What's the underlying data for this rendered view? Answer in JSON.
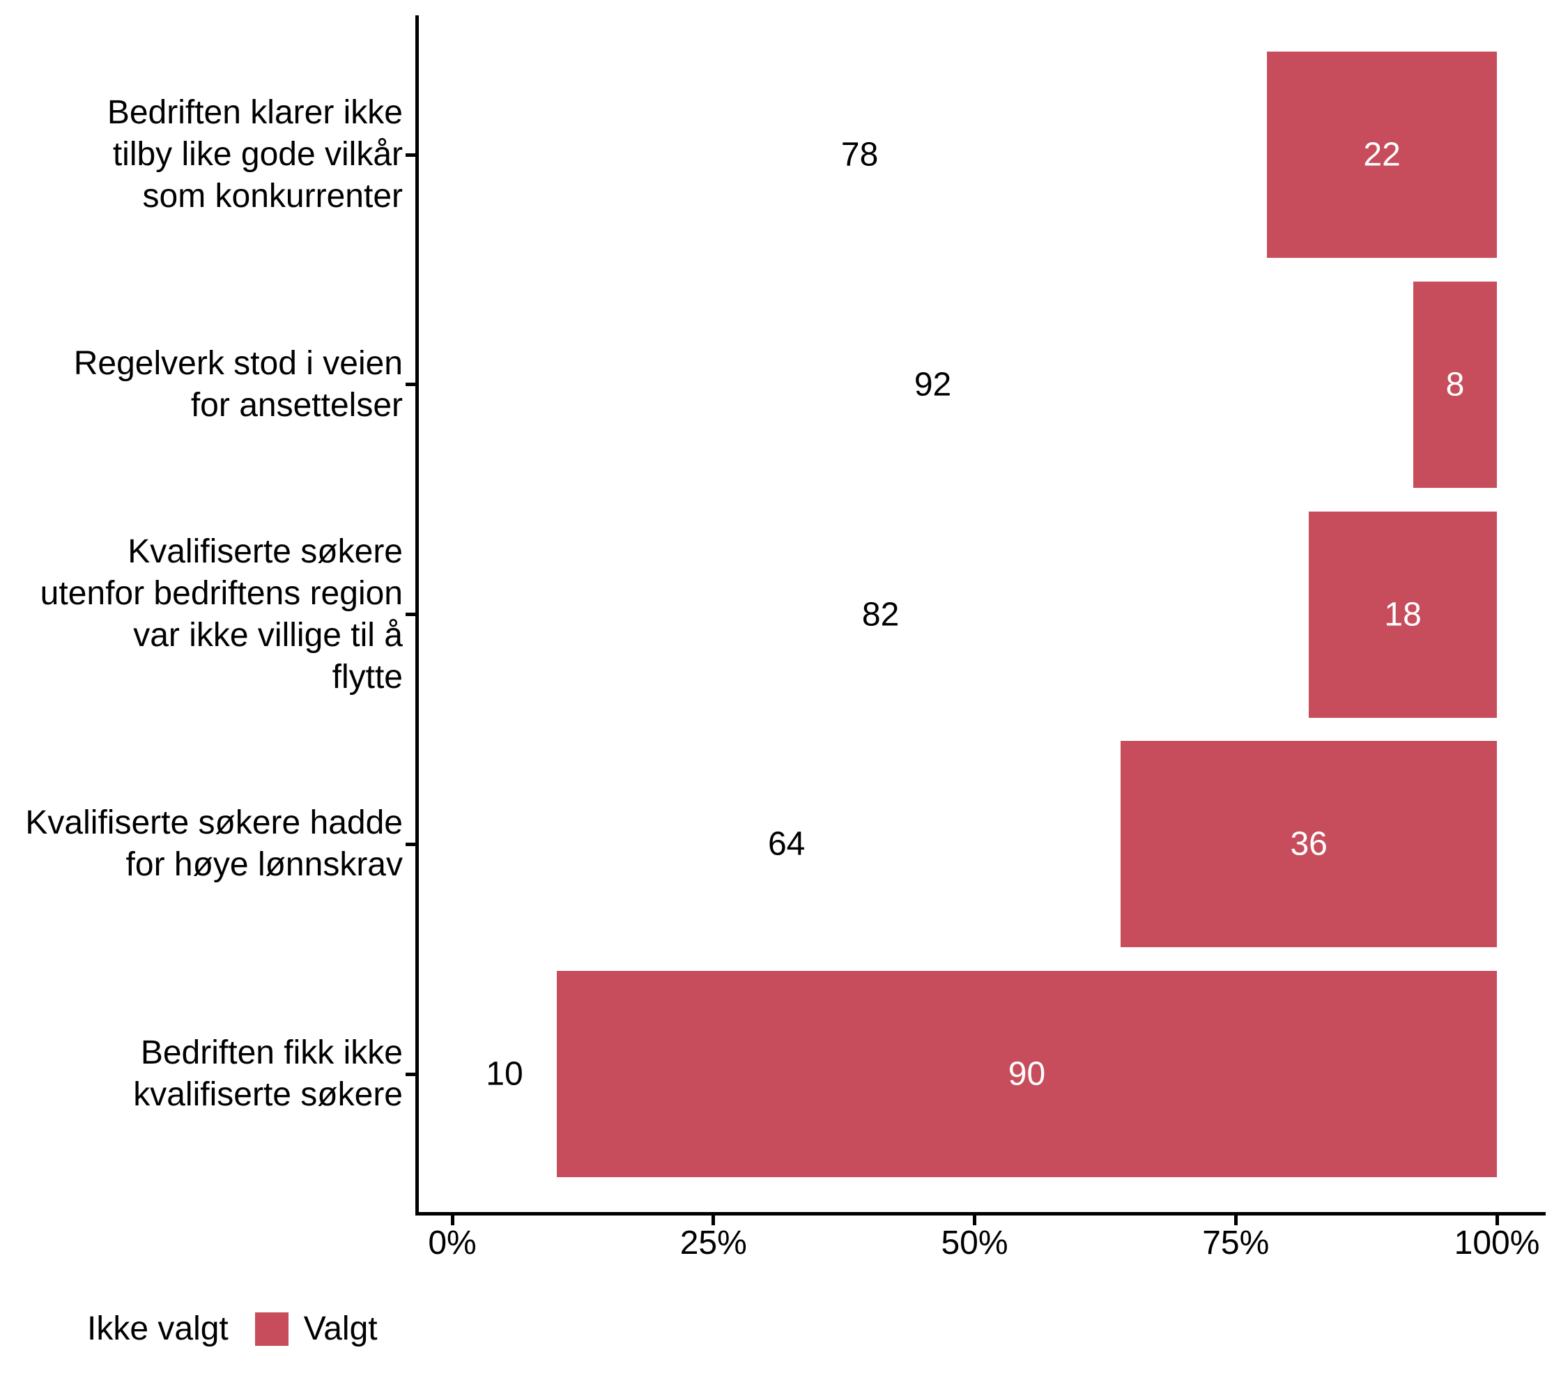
{
  "chart_data": {
    "type": "bar",
    "orientation": "horizontal",
    "stacked": true,
    "value_unit": "percent",
    "title": "",
    "xlabel": "",
    "ylabel": "",
    "xlim": [
      0,
      100
    ],
    "grid": false,
    "legend_position": "bottom-left",
    "categories": [
      "Bedriften klarer ikke tilby like gode vilkår som konkurrenter",
      "Regelverk stod i veien for ansettelser",
      "Kvalifiserte søkere utenfor bedriftens region var ikke villige til å flytte",
      "Kvalifiserte søkere hadde for høye lønnskrav",
      "Bedriften fikk ikke kvalifiserte søkere"
    ],
    "category_label_lines": [
      [
        "Bedriften klarer ikke",
        "tilby like gode vilkår",
        "som konkurrenter"
      ],
      [
        "Regelverk stod i veien",
        "for ansettelser"
      ],
      [
        "Kvalifiserte søkere",
        "utenfor bedriftens region",
        "var ikke villige til å",
        "flytte"
      ],
      [
        "Kvalifiserte søkere hadde",
        "for høye lønnskrav"
      ],
      [
        "Bedriften fikk ikke",
        "kvalifiserte søkere"
      ]
    ],
    "series": [
      {
        "name": "Ikke valgt",
        "color": "#FFFFFF",
        "label_color": "#000000",
        "values": [
          78,
          92,
          82,
          64,
          10
        ]
      },
      {
        "name": "Valgt",
        "color": "#C74D5C",
        "label_color": "#FFFFFF",
        "values": [
          22,
          8,
          18,
          36,
          90
        ]
      }
    ],
    "x_ticks": [
      {
        "value": 0,
        "label": "0%"
      },
      {
        "value": 25,
        "label": "25%"
      },
      {
        "value": 50,
        "label": "50%"
      },
      {
        "value": 75,
        "label": "75%"
      },
      {
        "value": 100,
        "label": "100%"
      }
    ]
  },
  "legend": {
    "items": [
      {
        "label": "Ikke valgt",
        "color": "#FFFFFF"
      },
      {
        "label": "Valgt",
        "color": "#C74D5C"
      }
    ]
  },
  "colors": {
    "bar_valgt": "#C74D5C",
    "bar_ikke_valgt": "#FFFFFF",
    "axis": "#000000",
    "text": "#000000"
  }
}
